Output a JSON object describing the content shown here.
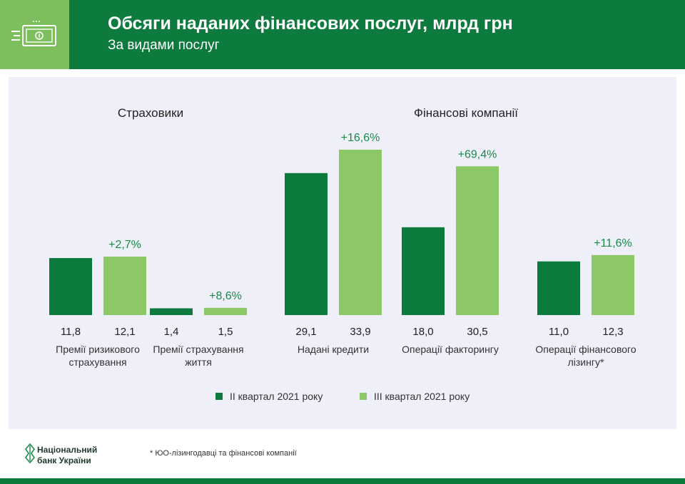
{
  "header": {
    "title": "Обсяги наданих фінансових послуг, млрд грн",
    "subtitle": "За видами послуг"
  },
  "colors": {
    "dark_green": "#0d7a3e",
    "light_green": "#8cc865",
    "pct_green": "#1a8a47"
  },
  "chart_data": {
    "type": "bar",
    "groups": [
      {
        "title": "Страховики",
        "categories": [
          "Премії ризикового страхування",
          "Премії страхування життя"
        ]
      },
      {
        "title": "Фінансові компанії",
        "categories": [
          "Надані кредити",
          "Операції факторингу",
          "Операції фінансового лізингу*"
        ]
      }
    ],
    "categories": [
      [
        "Премії ризикового",
        "страхування"
      ],
      [
        "Премії страхування",
        "життя"
      ],
      [
        "Надані кредити"
      ],
      [
        "Операції факторингу"
      ],
      [
        "Операції фінансового",
        "лізингу*"
      ]
    ],
    "series": [
      {
        "name": "ІІ квартал 2021 року",
        "values": [
          11.8,
          1.4,
          29.1,
          18.0,
          11.0
        ],
        "labels": [
          "11,8",
          "1,4",
          "29,1",
          "18,0",
          "11,0"
        ]
      },
      {
        "name": "ІІІ квартал 2021 року",
        "values": [
          12.1,
          1.5,
          33.9,
          30.5,
          12.3
        ],
        "labels": [
          "12,1",
          "1,5",
          "33,9",
          "30,5",
          "12,3"
        ]
      }
    ],
    "change_labels": [
      "+2,7%",
      "+8,6%",
      "+16,6%",
      "+69,4%",
      "+11,6%"
    ],
    "scale_groups": [
      {
        "indices": [
          0,
          1
        ],
        "max_value": 12.1
      },
      {
        "indices": [
          2,
          3,
          4
        ],
        "max_value": 33.9
      }
    ],
    "legend_position": "bottom-center",
    "grid": false
  },
  "footer": {
    "logo_line1": "Національний",
    "logo_line2": "банк України",
    "footnote": "* ЮО-лізингодавці та фінансові компанії"
  }
}
